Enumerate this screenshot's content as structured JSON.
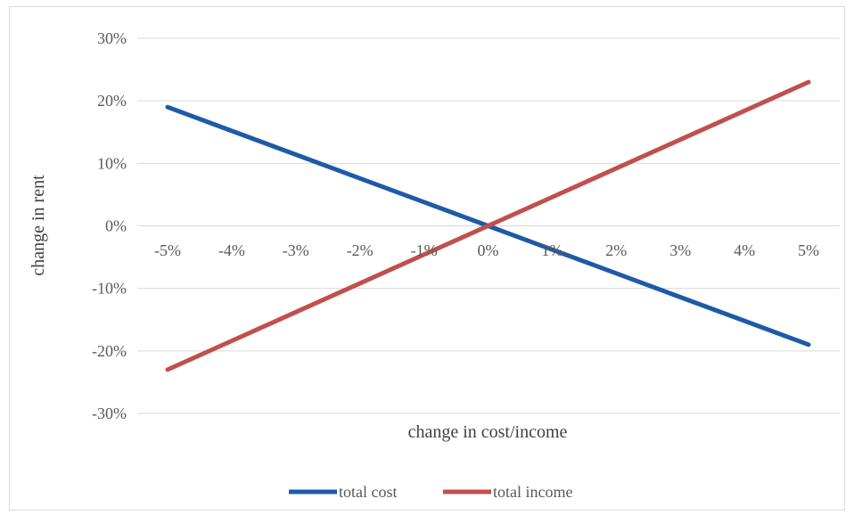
{
  "chart_data": {
    "type": "line",
    "title": "",
    "xlabel": "change in cost/income",
    "ylabel": "change in rent",
    "categories": [
      "-5%",
      "-4%",
      "-3%",
      "-2%",
      "-1%",
      "0%",
      "1%",
      "2%",
      "3%",
      "4%",
      "5%"
    ],
    "x": [
      -5,
      -4,
      -3,
      -2,
      -1,
      0,
      1,
      2,
      3,
      4,
      5
    ],
    "ylim": [
      -30,
      30
    ],
    "ytick_values": [
      30,
      20,
      10,
      0,
      -10,
      -20,
      -30
    ],
    "ytick_labels": [
      "30%",
      "20%",
      "10%",
      "0%",
      "-10%",
      "-20%",
      "-30%"
    ],
    "grid": true,
    "legend_position": "bottom",
    "series": [
      {
        "name": "total cost",
        "color": "#1f5aa6",
        "values": [
          19,
          15.2,
          11.4,
          7.6,
          3.8,
          0,
          -3.8,
          -7.6,
          -11.4,
          -15.2,
          -19
        ]
      },
      {
        "name": "total income",
        "color": "#c0504d",
        "values": [
          -23,
          -18.4,
          -13.8,
          -9.2,
          -4.6,
          0,
          4.6,
          9.2,
          13.8,
          18.4,
          23
        ]
      }
    ]
  }
}
